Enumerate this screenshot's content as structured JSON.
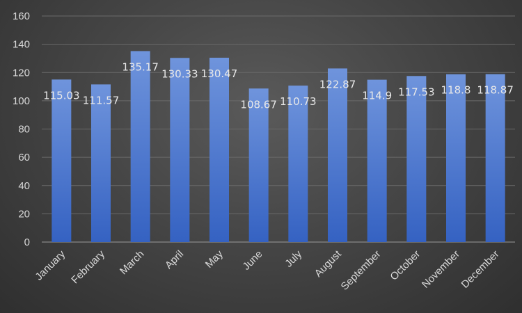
{
  "chart_data": {
    "type": "bar",
    "title": "",
    "xlabel": "",
    "ylabel": "",
    "ylim": [
      0,
      160
    ],
    "yticks": [
      0,
      20,
      40,
      60,
      80,
      100,
      120,
      140,
      160
    ],
    "grid": true,
    "categories": [
      "January",
      "February",
      "March",
      "April",
      "May",
      "June",
      "July",
      "August",
      "September",
      "October",
      "November",
      "December"
    ],
    "values": [
      115.03,
      111.57,
      135.17,
      130.33,
      130.47,
      108.67,
      110.73,
      122.87,
      114.9,
      117.53,
      118.8,
      118.87
    ],
    "colors": {
      "bar_top": "#6f94dc",
      "bar_bottom": "#3562c2",
      "grid": "#6a6a6a",
      "text": "#d9d9d9"
    }
  }
}
